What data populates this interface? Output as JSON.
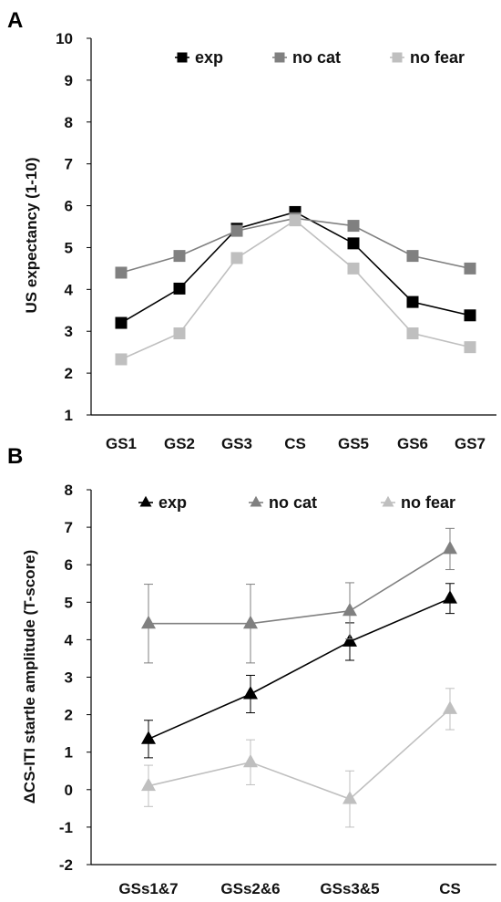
{
  "panel_labels": [
    "A",
    "B"
  ],
  "chart_data": [
    {
      "type": "line",
      "panel": "A",
      "title": "",
      "xlabel": "",
      "ylabel": "US expectancy (1-10)",
      "ylim": [
        1,
        10
      ],
      "yticks": [
        "1",
        "2",
        "3",
        "4",
        "5",
        "6",
        "7",
        "8",
        "9",
        "10"
      ],
      "categories": [
        "GS1",
        "GS2",
        "GS3",
        "CS",
        "GS5",
        "GS6",
        "GS7"
      ],
      "marker": "square",
      "grid": false,
      "legend_position": "top",
      "series": [
        {
          "name": "exp",
          "color": "#000000",
          "values": [
            3.2,
            4.02,
            5.45,
            5.85,
            5.1,
            3.7,
            3.38
          ]
        },
        {
          "name": "no cat",
          "color": "#808080",
          "values": [
            4.4,
            4.8,
            5.4,
            5.7,
            5.52,
            4.8,
            4.5
          ]
        },
        {
          "name": "no fear",
          "color": "#bfbfbf",
          "values": [
            2.33,
            2.95,
            4.75,
            5.65,
            4.5,
            2.95,
            2.62
          ]
        }
      ]
    },
    {
      "type": "line",
      "panel": "B",
      "title": "",
      "xlabel": "",
      "ylabel": "ΔCS-ITI startle amplitude (T-score)",
      "ylim": [
        -2,
        8
      ],
      "yticks": [
        "-2",
        "-1",
        "0",
        "1",
        "2",
        "3",
        "4",
        "5",
        "6",
        "7",
        "8"
      ],
      "categories": [
        "GSs1&7",
        "GSs2&6",
        "GSs3&5",
        "CS"
      ],
      "marker": "triangle",
      "grid": false,
      "legend_position": "top",
      "series": [
        {
          "name": "exp",
          "color": "#000000",
          "values": [
            1.35,
            2.55,
            3.95,
            5.1
          ],
          "err_upper": [
            0.5,
            0.5,
            0.5,
            0.4
          ],
          "err_lower": [
            0.5,
            0.5,
            0.5,
            0.4
          ]
        },
        {
          "name": "no cat",
          "color": "#808080",
          "values": [
            4.43,
            4.43,
            4.77,
            6.42
          ],
          "err_upper": [
            1.05,
            1.05,
            0.75,
            0.55
          ],
          "err_lower": [
            1.05,
            1.05,
            0.75,
            0.55
          ]
        },
        {
          "name": "no fear",
          "color": "#bfbfbf",
          "values": [
            0.1,
            0.73,
            -0.25,
            2.15
          ],
          "err_upper": [
            0.55,
            0.6,
            0.75,
            0.55
          ],
          "err_lower": [
            0.55,
            0.6,
            0.75,
            0.55
          ]
        }
      ]
    }
  ]
}
